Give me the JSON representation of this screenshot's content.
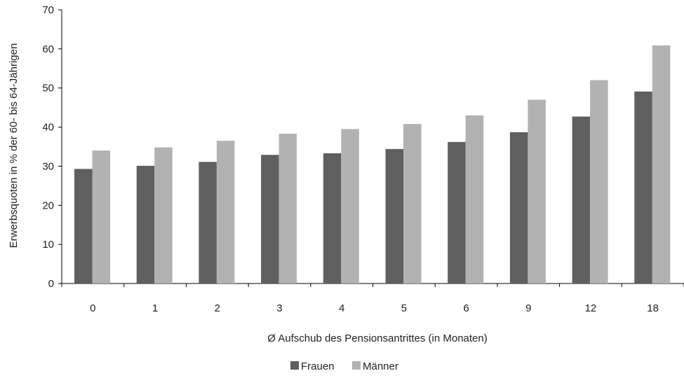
{
  "chart_data": {
    "type": "bar",
    "categories": [
      "0",
      "1",
      "2",
      "3",
      "4",
      "5",
      "6",
      "9",
      "12",
      "18"
    ],
    "series": [
      {
        "name": "Frauen",
        "color": "#5f5f5f",
        "values": [
          29.3,
          30.1,
          31.1,
          32.9,
          33.3,
          34.4,
          36.2,
          38.7,
          42.7,
          49.1
        ]
      },
      {
        "name": "Männer",
        "color": "#b2b2b2",
        "values": [
          34.0,
          34.8,
          36.5,
          38.3,
          39.5,
          40.8,
          43.0,
          47.0,
          52.0,
          60.9
        ]
      }
    ],
    "xlabel": "Ø Aufschub des Pensionsantrittes (in Monaten)",
    "ylabel": "Erwerbsquoten in % der 60- bis 64-Jährigen",
    "ylim": [
      0,
      70
    ],
    "yticks": [
      0,
      10,
      20,
      30,
      40,
      50,
      60,
      70
    ],
    "grid": false,
    "legend_position": "bottom-center"
  }
}
